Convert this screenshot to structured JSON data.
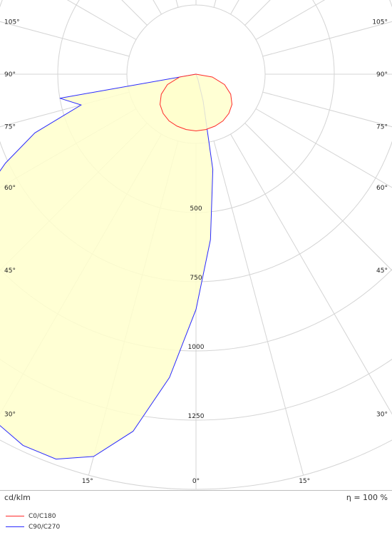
{
  "chart_data": {
    "type": "polar-photometric",
    "unit": "cd/klm",
    "efficiency_text": "η = 100 %",
    "radial_ticks": [
      250,
      500,
      750,
      1000,
      1250,
      1500
    ],
    "radial_labels": [
      "500",
      "750",
      "1000",
      "1250"
    ],
    "angle_labels": {
      "left": [
        {
          "angle": 105,
          "text": "105°"
        },
        {
          "angle": 90,
          "text": "90°"
        },
        {
          "angle": 75,
          "text": "75°"
        },
        {
          "angle": 60,
          "text": "60°"
        },
        {
          "angle": 45,
          "text": "45°"
        },
        {
          "angle": 30,
          "text": "30°"
        }
      ],
      "right": [
        {
          "angle": 105,
          "text": "105°"
        },
        {
          "angle": 90,
          "text": "90°"
        },
        {
          "angle": 75,
          "text": "75°"
        },
        {
          "angle": 60,
          "text": "60°"
        },
        {
          "angle": 45,
          "text": "45°"
        },
        {
          "angle": 30,
          "text": "30°"
        }
      ],
      "bottom": [
        {
          "angle": -15,
          "text": "15°"
        },
        {
          "angle": 0,
          "text": "0°"
        },
        {
          "angle": 15,
          "text": "15°"
        }
      ]
    },
    "series": [
      {
        "name": "C0/C180",
        "color": "#ff2a2a",
        "fill": "#ffffcc",
        "points": [
          [
            -90,
            0
          ],
          [
            -80,
            60
          ],
          [
            -70,
            110
          ],
          [
            -60,
            145
          ],
          [
            -50,
            170
          ],
          [
            -40,
            185
          ],
          [
            -30,
            195
          ],
          [
            -20,
            200
          ],
          [
            -10,
            203
          ],
          [
            0,
            205
          ],
          [
            10,
            203
          ],
          [
            20,
            200
          ],
          [
            30,
            195
          ],
          [
            40,
            185
          ],
          [
            50,
            170
          ],
          [
            60,
            145
          ],
          [
            70,
            110
          ],
          [
            80,
            60
          ],
          [
            90,
            0
          ]
        ]
      },
      {
        "name": "C90/C270",
        "color": "#2a2aff",
        "fill": "#ffffcc",
        "points": [
          [
            -90,
            0
          ],
          [
            -80,
            500
          ],
          [
            -75,
            430
          ],
          [
            -70,
            620
          ],
          [
            -65,
            760
          ],
          [
            -60,
            900
          ],
          [
            -55,
            1020
          ],
          [
            -50,
            1130
          ],
          [
            -45,
            1230
          ],
          [
            -40,
            1310
          ],
          [
            -35,
            1390
          ],
          [
            -30,
            1450
          ],
          [
            -25,
            1480
          ],
          [
            -20,
            1480
          ],
          [
            -15,
            1430
          ],
          [
            -10,
            1310
          ],
          [
            -5,
            1100
          ],
          [
            0,
            850
          ],
          [
            5,
            600
          ],
          [
            10,
            350
          ],
          [
            15,
            100
          ],
          [
            20,
            20
          ],
          [
            30,
            0
          ]
        ]
      }
    ]
  }
}
